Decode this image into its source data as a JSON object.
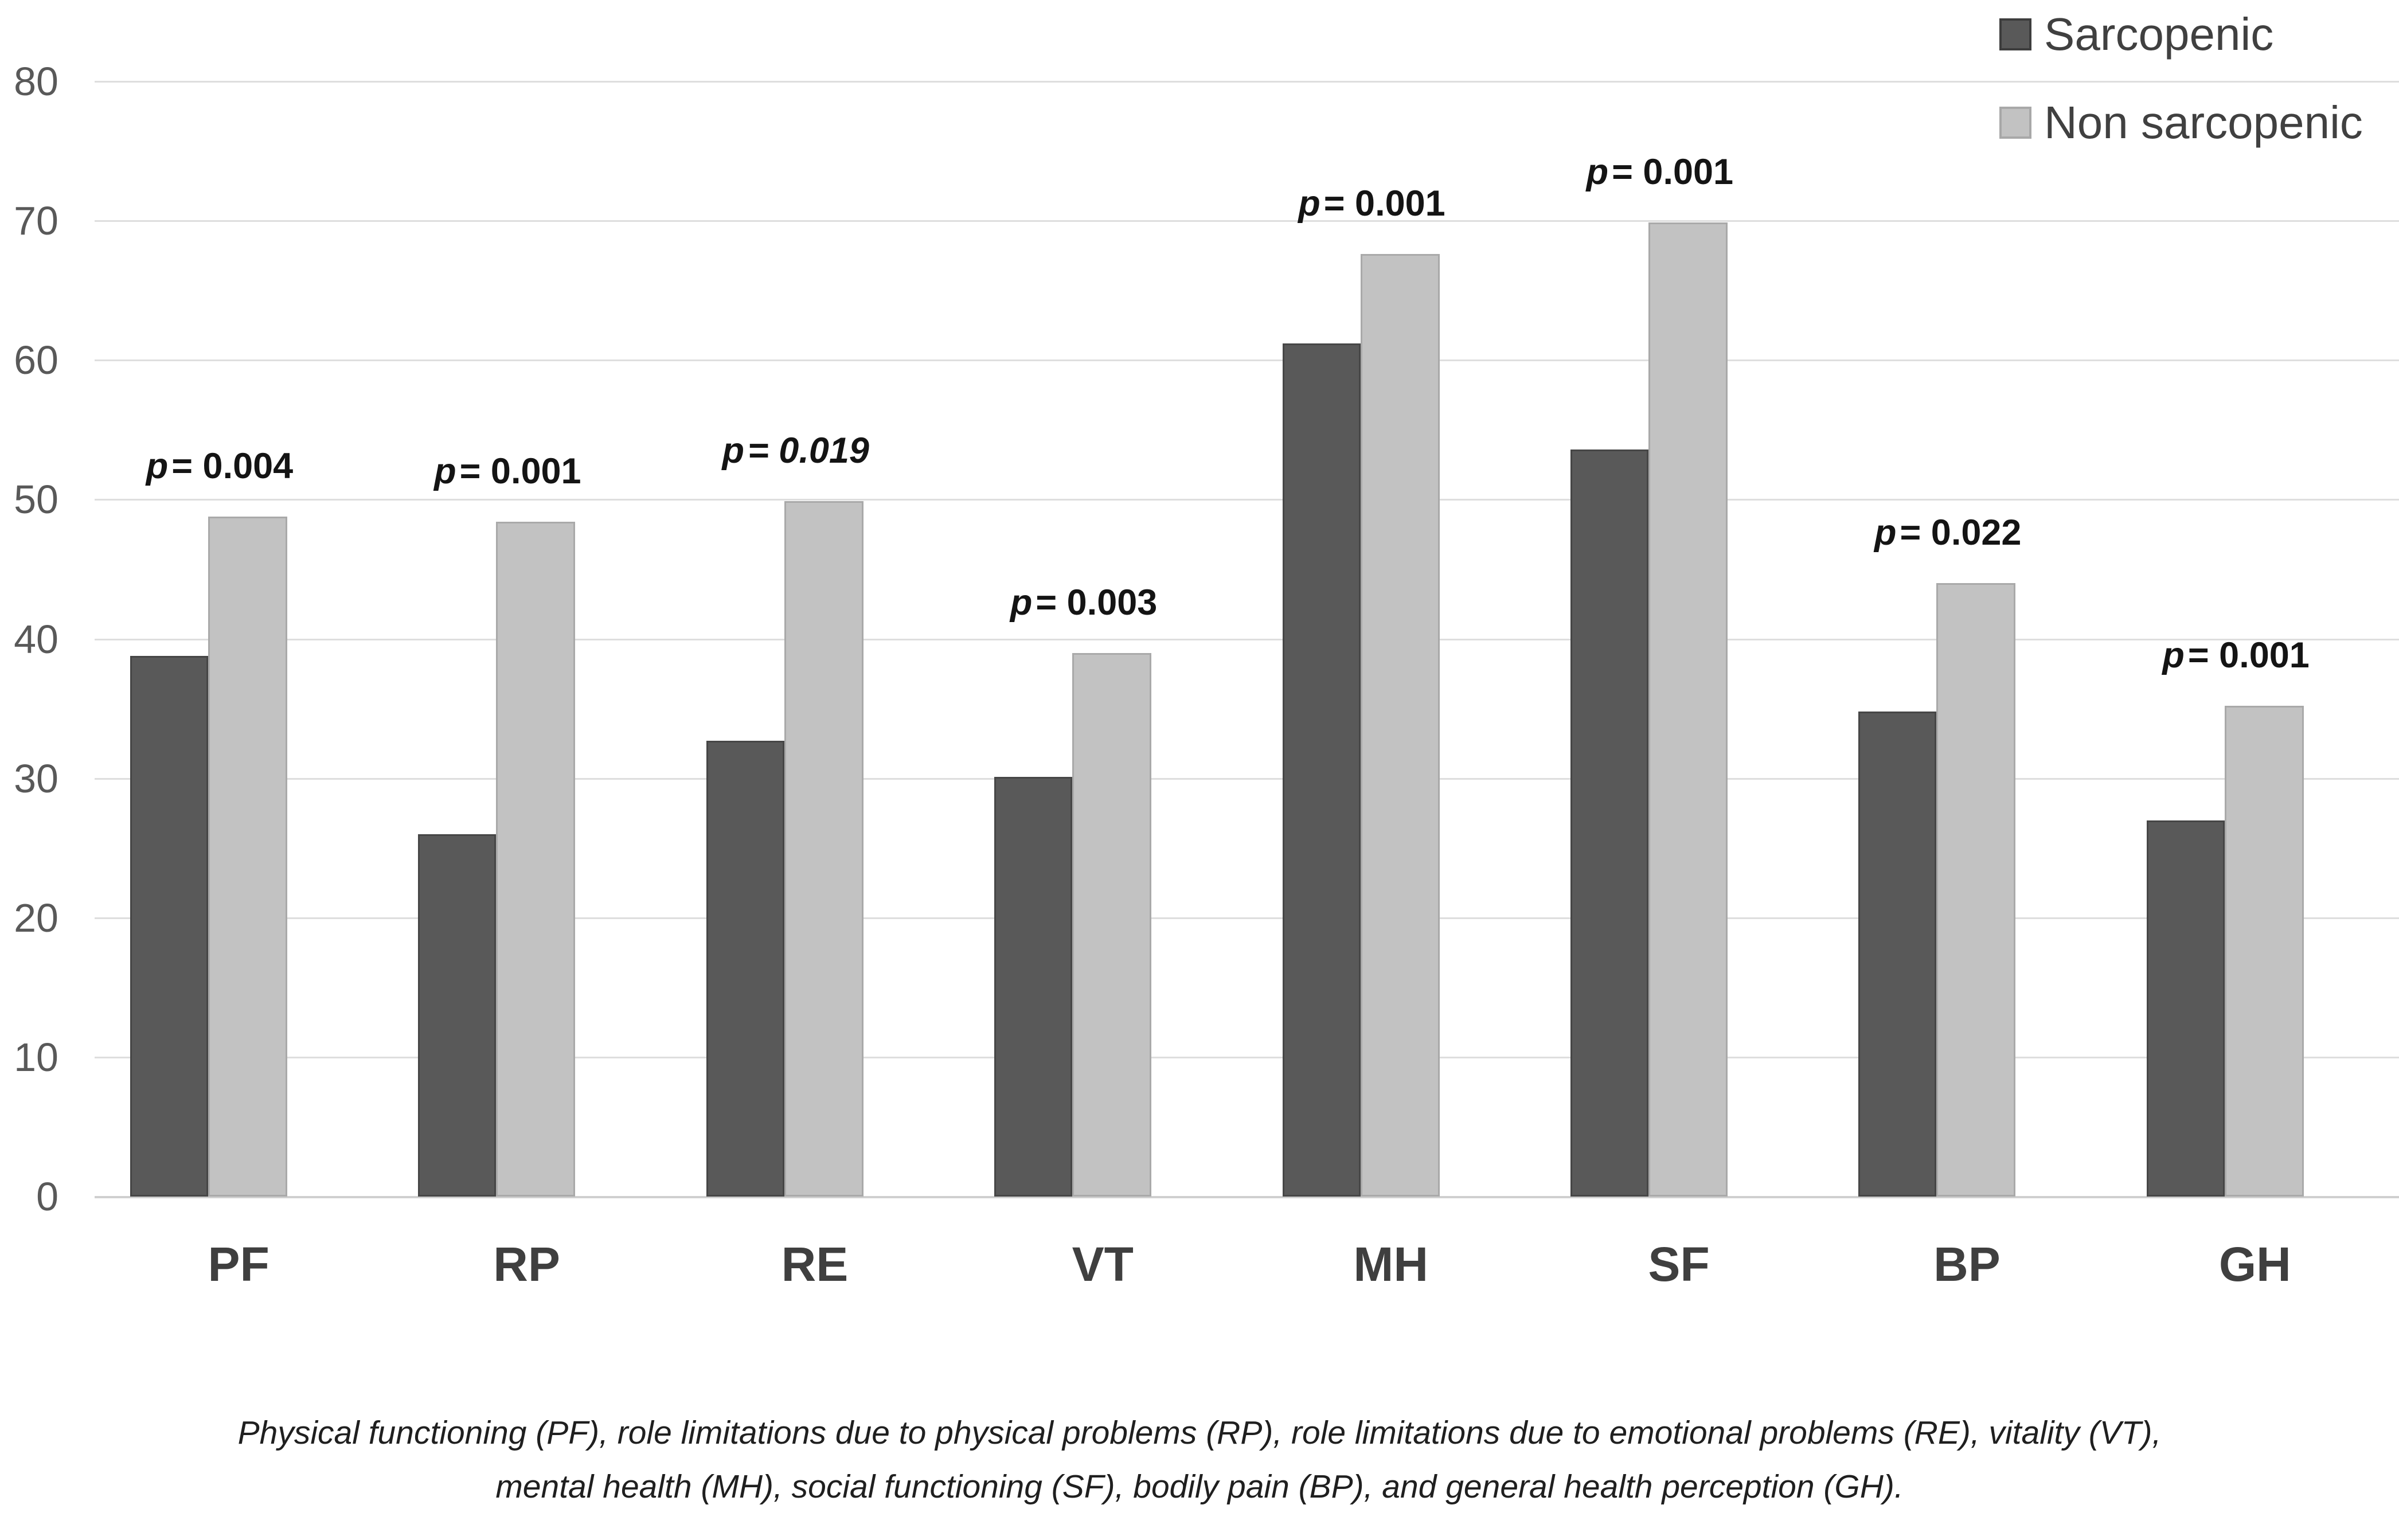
{
  "chart_data": {
    "type": "bar",
    "title": "",
    "categories": [
      "PF",
      "RP",
      "RE",
      "VT",
      "MH",
      "SF",
      "BP",
      "GH"
    ],
    "series": [
      {
        "name": "Sarcopenic",
        "color": "#595959",
        "values": [
          38.8,
          26.0,
          32.7,
          30.1,
          61.2,
          53.6,
          34.8,
          27.0
        ]
      },
      {
        "name": "Non sarcopenic",
        "color": "#c2c2c2",
        "values": [
          48.8,
          48.4,
          49.9,
          39.0,
          67.6,
          69.9,
          44.0,
          35.2
        ]
      }
    ],
    "annotations": [
      {
        "category": "PF",
        "label": "p = 0.004",
        "style": "normal"
      },
      {
        "category": "RP",
        "label": "p = 0.001",
        "style": "normal"
      },
      {
        "category": "RE",
        "label": "p = 0.019",
        "style": "italic"
      },
      {
        "category": "VT",
        "label": "p = 0.003",
        "style": "normal"
      },
      {
        "category": "MH",
        "label": "p = 0.001",
        "style": "normal"
      },
      {
        "category": "SF",
        "label": "p = 0.001",
        "style": "normal"
      },
      {
        "category": "BP",
        "label": "p = 0.022",
        "style": "normal"
      },
      {
        "category": "GH",
        "label": "p = 0.001",
        "style": "normal"
      }
    ],
    "ylim": [
      0,
      80
    ],
    "yticks": [
      80,
      70,
      60,
      50,
      40,
      30,
      20,
      10,
      0
    ],
    "xlabel": "",
    "ylabel": "",
    "grid": true,
    "legend_position": "top-right"
  },
  "legend": {
    "items": [
      {
        "label": "Sarcopenic",
        "color": "#595959",
        "border": "#3d3d3d"
      },
      {
        "label": "Non sarcopenic",
        "color": "#c2c2c2",
        "border": "#a8a8a8"
      }
    ]
  },
  "caption": {
    "line1": "Physical functioning (PF), role limitations due to physical problems (RP), role limitations due to emotional problems (RE), vitality (VT),",
    "line2": "mental health (MH), social functioning (SF), bodily pain (BP),  and general health perception (GH)."
  },
  "colors": {
    "grid_line": "#dedede",
    "axis_line": "#cfcfcf",
    "ytick_text": "#595959",
    "xtick_text": "#3f3f3f",
    "annotation_text": "#141414",
    "legend_text": "#404040",
    "caption_text": "#1f1f1f"
  }
}
